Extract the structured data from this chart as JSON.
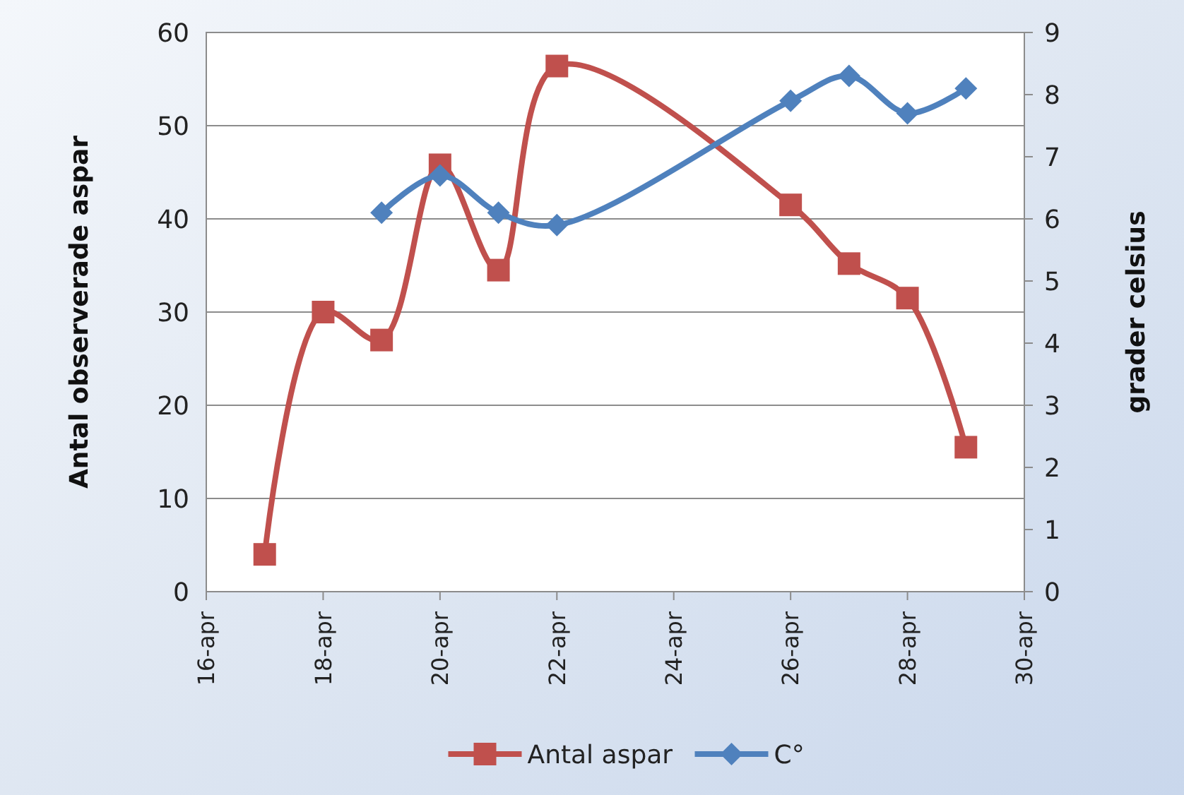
{
  "chart_data": {
    "type": "line",
    "ylabel": "Antal observerade aspar",
    "y2label": "grader celsius",
    "xlim": [
      "--04-16",
      "--04-30"
    ],
    "xticks": [
      {
        "value": "--04-16",
        "label": "16-apr"
      },
      {
        "value": "--04-18",
        "label": "18-apr"
      },
      {
        "value": "--04-20",
        "label": "20-apr"
      },
      {
        "value": "--04-22",
        "label": "22-apr"
      },
      {
        "value": "--04-24",
        "label": "24-apr"
      },
      {
        "value": "--04-26",
        "label": "26-apr"
      },
      {
        "value": "--04-28",
        "label": "28-apr"
      },
      {
        "value": "--04-30",
        "label": "30-apr"
      }
    ],
    "ylim": [
      0,
      60
    ],
    "yticks": [
      0,
      10,
      20,
      30,
      40,
      50,
      60
    ],
    "y2lim": [
      0,
      9
    ],
    "y2ticks": [
      0,
      1,
      2,
      3,
      4,
      5,
      6,
      7,
      8,
      9
    ],
    "grid": "y",
    "legend": "bottom",
    "series": [
      {
        "name": "Antal aspar",
        "color": "#c0504d",
        "marker": "square",
        "x": [
          "--04-17",
          "--04-18",
          "--04-19",
          "--04-20",
          "--04-21",
          "--04-22",
          "--04-26",
          "--04-27",
          "--04-28",
          "--04-29"
        ],
        "values": [
          4,
          30,
          27,
          45.8,
          34.5,
          56.4,
          41.5,
          35.2,
          31.5,
          15.5
        ]
      },
      {
        "name": "C°",
        "color": "#4f81bd",
        "marker": "diamond",
        "axis": "y2",
        "x": [
          "--04-19",
          "--04-20",
          "--04-21",
          "--04-22",
          "--04-26",
          "--04-27",
          "--04-28",
          "--04-29"
        ],
        "values": [
          6.1,
          6.7,
          6.1,
          5.9,
          7.9,
          8.3,
          7.7,
          8.1
        ]
      }
    ]
  }
}
